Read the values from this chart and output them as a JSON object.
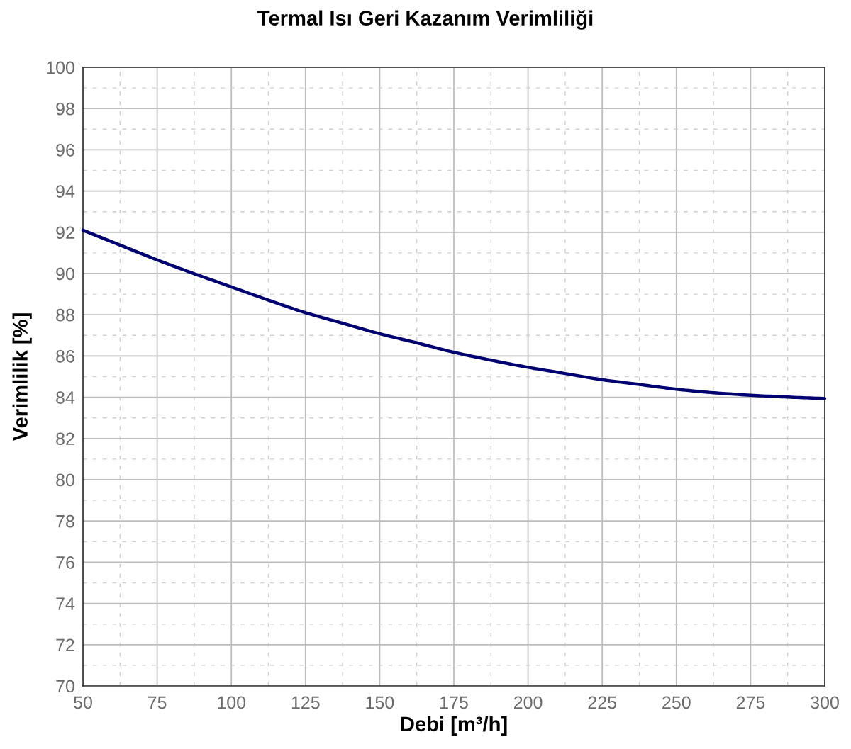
{
  "chart_data": {
    "type": "line",
    "title": "Termal Isı Geri Kazanım Verimliliği",
    "xlabel": "Debi [m³/h]",
    "ylabel": "Verimlilik [%]",
    "x": [
      50,
      62.5,
      75,
      87.5,
      100,
      112.5,
      125,
      137.5,
      150,
      162.5,
      175,
      187.5,
      200,
      212.5,
      225,
      237.5,
      250,
      262.5,
      275,
      287.5,
      300
    ],
    "series": [
      {
        "color": "#000070",
        "values": [
          92.1,
          91.38,
          90.66,
          89.99,
          89.35,
          88.71,
          88.1,
          87.59,
          87.08,
          86.64,
          86.18,
          85.8,
          85.45,
          85.15,
          84.85,
          84.62,
          84.39,
          84.22,
          84.1,
          84.01,
          83.94
        ]
      }
    ],
    "xlim": [
      50,
      300
    ],
    "xticks": [
      50,
      75,
      100,
      125,
      150,
      175,
      200,
      225,
      250,
      275,
      300
    ],
    "ylim": [
      70,
      100
    ],
    "yticks": [
      70,
      72,
      74,
      76,
      78,
      80,
      82,
      84,
      86,
      88,
      90,
      92,
      94,
      96,
      98,
      100
    ],
    "grid": true,
    "marker": "none",
    "line_style": "solid"
  }
}
